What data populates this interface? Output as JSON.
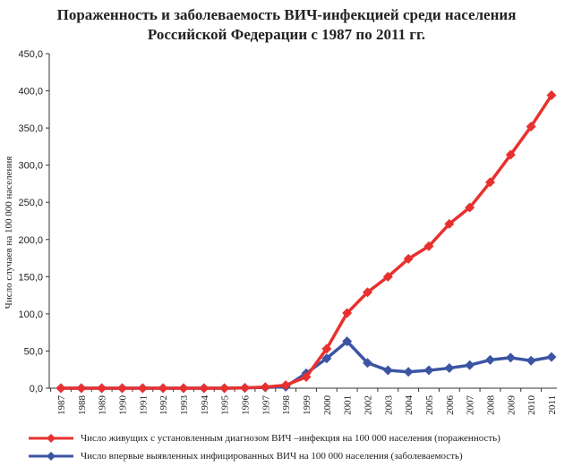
{
  "chart_data": {
    "type": "line",
    "title_line1": "Пораженность и заболеваемость ВИЧ-инфекцией среди населения",
    "title_line2": "Российской Федерации с 1987 по 2011 гг.",
    "ylabel": "Число случаев на 100 000 населения",
    "ylim": [
      0,
      450
    ],
    "yticks": [
      "0,0",
      "50,0",
      "100,0",
      "150,0",
      "200,0",
      "250,0",
      "300,0",
      "350,0",
      "400,0",
      "450,0"
    ],
    "categories": [
      "1987",
      "1988",
      "1989",
      "1990",
      "1991",
      "1992",
      "1993",
      "1994",
      "1995",
      "1996",
      "1997",
      "1998",
      "1999",
      "2000",
      "2001",
      "2002",
      "2003",
      "2004",
      "2005",
      "2006",
      "2007",
      "2008",
      "2009",
      "2010",
      "2011"
    ],
    "grid": false,
    "legend_position": "bottom",
    "series": [
      {
        "name": "Число живущих с установленным диагнозом ВИЧ  –инфекция на 100 000 населения (пораженность)",
        "color": "#e8312f",
        "marker": "diamond",
        "values": [
          0,
          0,
          0,
          0,
          0,
          0,
          0,
          0,
          0,
          0.5,
          1.5,
          4,
          15,
          53,
          101,
          129,
          150,
          174,
          191,
          221,
          243,
          277,
          314,
          352,
          394
        ]
      },
      {
        "name": "Число впервые выявленных инфицированных ВИЧ на 100 000 населения (заболеваемость)",
        "color": "#3b55a3",
        "marker": "diamond",
        "values": [
          0,
          0,
          0,
          0,
          0,
          0,
          0,
          0,
          0,
          0.5,
          1,
          2,
          20,
          40,
          63,
          34,
          24,
          22,
          24,
          27,
          31,
          38,
          41,
          37,
          42
        ]
      }
    ]
  }
}
